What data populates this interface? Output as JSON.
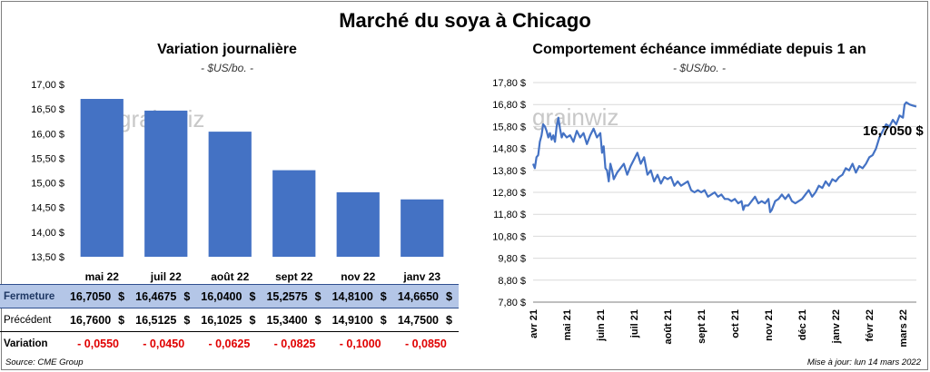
{
  "title": "Marché du soya à Chicago",
  "left": {
    "title": "Variation journalière",
    "unit": "- $US/bo. -"
  },
  "right": {
    "title": "Comportement échéance immédiate depuis 1 an",
    "unit": "- $US/bo. -",
    "callout": "16,7050 $"
  },
  "watermark": "grainwiz",
  "table": {
    "rows": [
      {
        "label": "Fermeture",
        "values": [
          "16,7050",
          "16,4675",
          "16,0400",
          "15,2575",
          "14,8100",
          "14,6650"
        ],
        "unit": "$"
      },
      {
        "label": "Précédent",
        "values": [
          "16,7600",
          "16,5125",
          "16,1025",
          "15,3400",
          "14,9100",
          "14,7500"
        ],
        "unit": "$"
      },
      {
        "label": "Variation",
        "values": [
          "- 0,0550",
          "- 0,0450",
          "- 0,0625",
          "- 0,0825",
          "- 0,1000",
          "- 0,0850"
        ]
      }
    ]
  },
  "footer": {
    "source": "Source: CME Group",
    "updated": "Mise à jour: lun 14 mars 2022"
  },
  "colors": {
    "bar": "#4472c4",
    "line": "#4472c4",
    "table_highlight": "#b4c6e7",
    "negative": "#e00000"
  },
  "chart_data": [
    {
      "type": "bar",
      "title": "Variation journalière",
      "ylabel": "$US/bo.",
      "categories": [
        "mai 22",
        "juil 22",
        "août 22",
        "sept 22",
        "nov 22",
        "janv 23"
      ],
      "values": [
        16.705,
        16.4675,
        16.04,
        15.2575,
        14.81,
        14.665
      ],
      "ylim": [
        13.5,
        17.0
      ],
      "yticks": [
        13.5,
        14.0,
        14.5,
        15.0,
        15.5,
        16.0,
        16.5,
        17.0
      ],
      "ytick_labels": [
        "13,50 $",
        "14,00 $",
        "14,50 $",
        "15,00 $",
        "15,50 $",
        "16,00 $",
        "16,50 $",
        "17,00 $"
      ],
      "grid": false
    },
    {
      "type": "line",
      "title": "Comportement échéance immédiate depuis 1 an",
      "ylabel": "$US/bo.",
      "ylim": [
        7.8,
        17.8
      ],
      "yticks": [
        7.8,
        8.8,
        9.8,
        10.8,
        11.8,
        12.8,
        13.8,
        14.8,
        15.8,
        16.8,
        17.8
      ],
      "ytick_labels": [
        "7,80 $",
        "8,80 $",
        "9,80 $",
        "10,80 $",
        "11,80 $",
        "12,80 $",
        "13,80 $",
        "14,80 $",
        "15,80 $",
        "16,80 $",
        "17,80 $"
      ],
      "xtick_labels": [
        "avr 21",
        "mai 21",
        "juin 21",
        "juil 21",
        "août 21",
        "sept 21",
        "oct 21",
        "nov 21",
        "déc 21",
        "janv 22",
        "févr 22",
        "mars 22"
      ],
      "grid": true,
      "series": [
        {
          "values": [
            [
              0.0,
              14.1
            ],
            [
              0.05,
              13.9
            ],
            [
              0.1,
              14.4
            ],
            [
              0.15,
              14.5
            ],
            [
              0.2,
              15.1
            ],
            [
              0.25,
              15.4
            ],
            [
              0.3,
              15.9
            ],
            [
              0.35,
              15.8
            ],
            [
              0.4,
              15.6
            ],
            [
              0.45,
              15.3
            ],
            [
              0.5,
              15.5
            ],
            [
              0.55,
              15.2
            ],
            [
              0.6,
              15.4
            ],
            [
              0.65,
              15.1
            ],
            [
              0.7,
              15.8
            ],
            [
              0.75,
              16.2
            ],
            [
              0.8,
              15.7
            ],
            [
              0.85,
              15.3
            ],
            [
              0.9,
              15.5
            ],
            [
              1.0,
              15.3
            ],
            [
              1.1,
              15.4
            ],
            [
              1.2,
              15.1
            ],
            [
              1.3,
              15.6
            ],
            [
              1.4,
              15.3
            ],
            [
              1.5,
              15.5
            ],
            [
              1.6,
              15.0
            ],
            [
              1.7,
              15.4
            ],
            [
              1.8,
              15.7
            ],
            [
              1.9,
              15.3
            ],
            [
              2.0,
              15.5
            ],
            [
              2.05,
              14.6
            ],
            [
              2.1,
              14.9
            ],
            [
              2.15,
              13.9
            ],
            [
              2.2,
              13.8
            ],
            [
              2.25,
              13.3
            ],
            [
              2.3,
              14.1
            ],
            [
              2.35,
              13.8
            ],
            [
              2.4,
              13.4
            ],
            [
              2.5,
              13.7
            ],
            [
              2.6,
              13.9
            ],
            [
              2.7,
              14.1
            ],
            [
              2.8,
              13.6
            ],
            [
              2.9,
              14.0
            ],
            [
              3.0,
              14.3
            ],
            [
              3.1,
              14.6
            ],
            [
              3.2,
              14.1
            ],
            [
              3.3,
              14.4
            ],
            [
              3.4,
              13.6
            ],
            [
              3.5,
              13.8
            ],
            [
              3.6,
              13.3
            ],
            [
              3.7,
              13.6
            ],
            [
              3.8,
              13.2
            ],
            [
              3.9,
              13.5
            ],
            [
              4.0,
              13.4
            ],
            [
              4.1,
              13.5
            ],
            [
              4.2,
              13.1
            ],
            [
              4.3,
              13.3
            ],
            [
              4.4,
              13.1
            ],
            [
              4.5,
              13.2
            ],
            [
              4.6,
              13.3
            ],
            [
              4.7,
              12.9
            ],
            [
              4.8,
              12.8
            ],
            [
              4.9,
              12.9
            ],
            [
              5.0,
              12.8
            ],
            [
              5.1,
              12.9
            ],
            [
              5.2,
              12.6
            ],
            [
              5.3,
              12.7
            ],
            [
              5.4,
              12.8
            ],
            [
              5.5,
              12.6
            ],
            [
              5.6,
              12.7
            ],
            [
              5.7,
              12.5
            ],
            [
              5.8,
              12.5
            ],
            [
              5.9,
              12.4
            ],
            [
              6.0,
              12.5
            ],
            [
              6.1,
              12.3
            ],
            [
              6.2,
              12.4
            ],
            [
              6.25,
              12.0
            ],
            [
              6.3,
              12.2
            ],
            [
              6.4,
              12.2
            ],
            [
              6.5,
              12.4
            ],
            [
              6.6,
              12.6
            ],
            [
              6.7,
              12.3
            ],
            [
              6.8,
              12.4
            ],
            [
              6.9,
              12.3
            ],
            [
              7.0,
              12.5
            ],
            [
              7.05,
              11.9
            ],
            [
              7.1,
              12.0
            ],
            [
              7.2,
              12.4
            ],
            [
              7.3,
              12.5
            ],
            [
              7.4,
              12.7
            ],
            [
              7.5,
              12.5
            ],
            [
              7.6,
              12.7
            ],
            [
              7.7,
              12.4
            ],
            [
              7.8,
              12.3
            ],
            [
              7.9,
              12.4
            ],
            [
              8.0,
              12.5
            ],
            [
              8.1,
              12.7
            ],
            [
              8.2,
              12.9
            ],
            [
              8.3,
              12.6
            ],
            [
              8.4,
              12.8
            ],
            [
              8.5,
              13.1
            ],
            [
              8.6,
              13.0
            ],
            [
              8.7,
              13.3
            ],
            [
              8.8,
              13.1
            ],
            [
              8.9,
              13.4
            ],
            [
              9.0,
              13.3
            ],
            [
              9.1,
              13.5
            ],
            [
              9.2,
              13.6
            ],
            [
              9.3,
              13.9
            ],
            [
              9.4,
              13.8
            ],
            [
              9.5,
              14.1
            ],
            [
              9.6,
              13.7
            ],
            [
              9.7,
              14.0
            ],
            [
              9.8,
              13.9
            ],
            [
              9.9,
              14.1
            ],
            [
              10.0,
              14.4
            ],
            [
              10.1,
              14.5
            ],
            [
              10.2,
              14.8
            ],
            [
              10.3,
              15.3
            ],
            [
              10.4,
              15.6
            ],
            [
              10.5,
              15.9
            ],
            [
              10.6,
              15.8
            ],
            [
              10.7,
              16.1
            ],
            [
              10.8,
              15.9
            ],
            [
              10.9,
              16.3
            ],
            [
              11.0,
              16.2
            ],
            [
              11.05,
              16.8
            ],
            [
              11.1,
              16.9
            ],
            [
              11.2,
              16.8
            ],
            [
              11.3,
              16.75
            ],
            [
              11.4,
              16.705
            ]
          ]
        }
      ]
    }
  ]
}
